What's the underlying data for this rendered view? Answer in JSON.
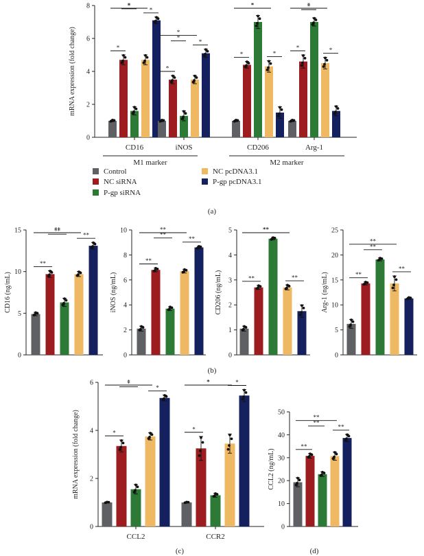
{
  "colors": {
    "Control": "#5f6063",
    "NC siRNA": "#9c1c1f",
    "P-gp siRNA": "#2c7a35",
    "NC pcDNA3.1": "#efb862",
    "P-gp pcDNA3.1": "#15205f"
  },
  "legend": [
    "Control",
    "NC siRNA",
    "P-gp siRNA",
    "NC pcDNA3.1",
    "P-gp pcDNA3.1"
  ],
  "panel_labels": {
    "a": "(a)",
    "b": "(b)",
    "c": "(c)",
    "d": "(d)"
  },
  "chart_data": [
    {
      "id": "a",
      "type": "bar",
      "ylabel": "mRNA expression (fold change)",
      "ylim": [
        0,
        8
      ],
      "yticks": [
        0,
        2,
        4,
        6,
        8
      ],
      "categories": [
        "CD16",
        "iNOS",
        "CD206",
        "Arg-1"
      ],
      "groups": [
        {
          "label": "M1 marker",
          "categories": [
            "CD16",
            "iNOS"
          ]
        },
        {
          "label": "M2 marker",
          "categories": [
            "CD206",
            "Arg-1"
          ]
        }
      ],
      "series": [
        {
          "name": "Control",
          "values": [
            1.0,
            1.0,
            1.0,
            1.0
          ],
          "errors": [
            0.05,
            0.05,
            0.05,
            0.05
          ]
        },
        {
          "name": "NC siRNA",
          "values": [
            4.7,
            3.5,
            4.4,
            4.6
          ],
          "errors": [
            0.3,
            0.25,
            0.2,
            0.4
          ]
        },
        {
          "name": "P-gp siRNA",
          "values": [
            1.6,
            1.3,
            7.0,
            7.0
          ],
          "errors": [
            0.25,
            0.3,
            0.4,
            0.25
          ]
        },
        {
          "name": "NC pcDNA3.1",
          "values": [
            4.7,
            3.5,
            4.3,
            4.5
          ],
          "errors": [
            0.3,
            0.25,
            0.35,
            0.35
          ]
        },
        {
          "name": "P-gp pcDNA3.1",
          "values": [
            7.1,
            5.1,
            1.5,
            1.6
          ],
          "errors": [
            0.2,
            0.25,
            0.35,
            0.3
          ]
        }
      ],
      "significance": "*"
    },
    {
      "id": "b1",
      "type": "bar",
      "ylabel": "CD16 (ng/mL)",
      "ylim": [
        0,
        15
      ],
      "yticks": [
        0,
        5,
        10,
        15
      ],
      "series": [
        {
          "name": "Control",
          "values": [
            4.9
          ],
          "errors": [
            0.2
          ]
        },
        {
          "name": "NC siRNA",
          "values": [
            9.7
          ],
          "errors": [
            0.4
          ]
        },
        {
          "name": "P-gp siRNA",
          "values": [
            6.3
          ],
          "errors": [
            0.5
          ]
        },
        {
          "name": "NC pcDNA3.1",
          "values": [
            9.7
          ],
          "errors": [
            0.3
          ]
        },
        {
          "name": "P-gp pcDNA3.1",
          "values": [
            13.1
          ],
          "errors": [
            0.4
          ]
        }
      ],
      "significance": "**"
    },
    {
      "id": "b2",
      "type": "bar",
      "ylabel": "iNOS (ng/mL)",
      "ylim": [
        0,
        10
      ],
      "yticks": [
        0,
        2,
        4,
        6,
        8,
        10
      ],
      "series": [
        {
          "name": "Control",
          "values": [
            2.1
          ],
          "errors": [
            0.2
          ]
        },
        {
          "name": "NC siRNA",
          "values": [
            6.8
          ],
          "errors": [
            0.15
          ]
        },
        {
          "name": "P-gp siRNA",
          "values": [
            3.7
          ],
          "errors": [
            0.15
          ]
        },
        {
          "name": "NC pcDNA3.1",
          "values": [
            6.7
          ],
          "errors": [
            0.15
          ]
        },
        {
          "name": "P-gp pcDNA3.1",
          "values": [
            8.6
          ],
          "errors": [
            0.1
          ]
        }
      ],
      "significance": "**"
    },
    {
      "id": "b3",
      "type": "bar",
      "ylabel": "CD206 (ng/mL)",
      "ylim": [
        0,
        5
      ],
      "yticks": [
        0,
        1,
        2,
        3,
        4,
        5
      ],
      "series": [
        {
          "name": "Control",
          "values": [
            1.05
          ],
          "errors": [
            0.1
          ]
        },
        {
          "name": "NC siRNA",
          "values": [
            2.7
          ],
          "errors": [
            0.08
          ]
        },
        {
          "name": "P-gp siRNA",
          "values": [
            4.65
          ],
          "errors": [
            0.05
          ]
        },
        {
          "name": "NC pcDNA3.1",
          "values": [
            2.7
          ],
          "errors": [
            0.1
          ]
        },
        {
          "name": "P-gp pcDNA3.1",
          "values": [
            1.75
          ],
          "errors": [
            0.25
          ]
        }
      ],
      "significance": "**"
    },
    {
      "id": "b4",
      "type": "bar",
      "ylabel": "Arg-1 (ng/mL)",
      "ylim": [
        0,
        25
      ],
      "yticks": [
        0,
        5,
        10,
        15,
        20,
        25
      ],
      "series": [
        {
          "name": "Control",
          "values": [
            6.2
          ],
          "errors": [
            0.9
          ]
        },
        {
          "name": "NC siRNA",
          "values": [
            14.3
          ],
          "errors": [
            0.3
          ]
        },
        {
          "name": "P-gp siRNA",
          "values": [
            19.1
          ],
          "errors": [
            0.3
          ]
        },
        {
          "name": "NC pcDNA3.1",
          "values": [
            14.3
          ],
          "errors": [
            1.5
          ]
        },
        {
          "name": "P-gp pcDNA3.1",
          "values": [
            11.3
          ],
          "errors": [
            0.2
          ]
        }
      ],
      "significance": "**"
    },
    {
      "id": "c",
      "type": "bar",
      "ylabel": "mRNA expression (fold change)",
      "ylim": [
        0,
        6
      ],
      "yticks": [
        0,
        2,
        4,
        6
      ],
      "categories": [
        "CCL2",
        "CCR2"
      ],
      "series": [
        {
          "name": "Control",
          "values": [
            1.0,
            1.0
          ],
          "errors": [
            0.02,
            0.02
          ]
        },
        {
          "name": "NC siRNA",
          "values": [
            3.35,
            3.25
          ],
          "errors": [
            0.25,
            0.5
          ]
        },
        {
          "name": "P-gp siRNA",
          "values": [
            1.55,
            1.3
          ],
          "errors": [
            0.2,
            0.08
          ]
        },
        {
          "name": "NC pcDNA3.1",
          "values": [
            3.75,
            3.45
          ],
          "errors": [
            0.15,
            0.4
          ]
        },
        {
          "name": "P-gp pcDNA3.1",
          "values": [
            5.35,
            5.45
          ],
          "errors": [
            0.12,
            0.25
          ]
        }
      ],
      "significance": "*"
    },
    {
      "id": "d",
      "type": "bar",
      "ylabel": "CCL2 (ng/mL)",
      "ylim": [
        0,
        50
      ],
      "yticks": [
        0,
        10,
        20,
        30,
        40,
        50
      ],
      "series": [
        {
          "name": "Control",
          "values": [
            19.3
          ],
          "errors": [
            2.0
          ]
        },
        {
          "name": "NC siRNA",
          "values": [
            30.8
          ],
          "errors": [
            1.0
          ]
        },
        {
          "name": "P-gp siRNA",
          "values": [
            22.8
          ],
          "errors": [
            1.0
          ]
        },
        {
          "name": "NC pcDNA3.1",
          "values": [
            30.7
          ],
          "errors": [
            1.8
          ]
        },
        {
          "name": "P-gp pcDNA3.1",
          "values": [
            38.6
          ],
          "errors": [
            1.6
          ]
        }
      ],
      "significance": "**"
    }
  ]
}
